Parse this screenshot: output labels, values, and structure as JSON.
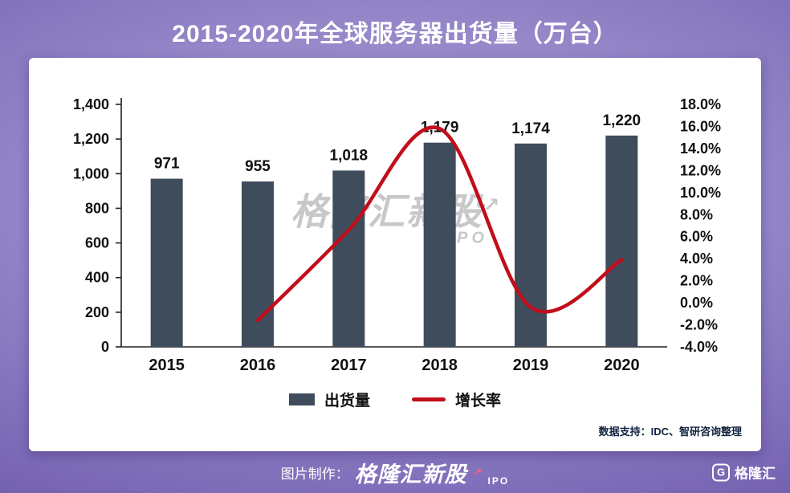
{
  "title": "2015-2020年全球服务器出货量（万台）",
  "watermark": {
    "text": "格隆汇新股",
    "arrow": "↗",
    "sub": "IPO"
  },
  "source_note": "数据支持：IDC、智研咨询整理",
  "footer": {
    "prefix": "图片制作：",
    "brand": "格隆汇新股",
    "arrow": "↗",
    "sub": "IPO",
    "logo_letter": "G",
    "logo_text": "格隆汇"
  },
  "chart_data": {
    "type": "bar+line",
    "title": "2015-2020年全球服务器出货量（万台）",
    "categories": [
      "2015",
      "2016",
      "2017",
      "2018",
      "2019",
      "2020"
    ],
    "series": [
      {
        "name": "出货量",
        "type": "bar",
        "axis": "left",
        "values": [
          971,
          955,
          1018,
          1179,
          1174,
          1220
        ],
        "value_labels": [
          "971",
          "955",
          "1,018",
          "1,179",
          "1,174",
          "1,220"
        ],
        "color": "#3f4c5c"
      },
      {
        "name": "增长率",
        "type": "line",
        "axis": "right",
        "x": [
          "2016",
          "2017",
          "2018",
          "2019",
          "2020"
        ],
        "values": [
          -1.6,
          6.6,
          15.8,
          -0.4,
          3.9
        ],
        "color": "#c20d1a"
      }
    ],
    "left_axis": {
      "min": 0,
      "max": 1400,
      "step": 200,
      "ticks": [
        "0",
        "200",
        "400",
        "600",
        "800",
        "1,000",
        "1,200",
        "1,400"
      ]
    },
    "right_axis": {
      "min": -4,
      "max": 18,
      "step": 2,
      "ticks": [
        "-4.0%",
        "-2.0%",
        "0.0%",
        "2.0%",
        "4.0%",
        "6.0%",
        "8.0%",
        "10.0%",
        "12.0%",
        "14.0%",
        "16.0%",
        "18.0%"
      ]
    },
    "legend": {
      "position": "bottom",
      "items": [
        {
          "label": "出货量",
          "swatch": "bar",
          "color": "#3f4c5c"
        },
        {
          "label": "增长率",
          "swatch": "line",
          "color": "#c20d1a"
        }
      ]
    },
    "grid": false
  }
}
